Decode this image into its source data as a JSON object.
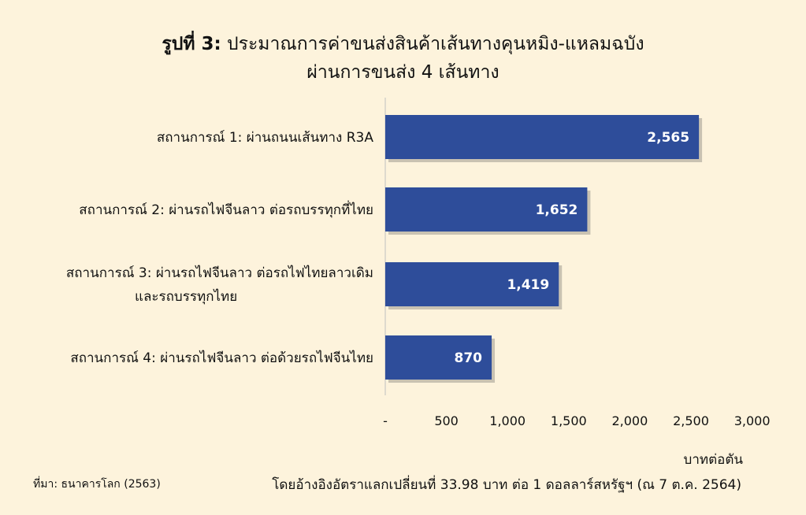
{
  "title": {
    "prefix": "รูปที่ 3:",
    "line1": "ประมาณการค่าขนส่งสินค้าเส้นทางคุนหมิง-แหลมฉบัง",
    "line2": "ผ่านการขนส่ง 4 เส้นทาง"
  },
  "chart_data": {
    "type": "bar",
    "orientation": "horizontal",
    "categories": [
      [
        "สถานการณ์ 1: ผ่านถนนเส้นทาง R3A"
      ],
      [
        "สถานการณ์ 2: ผ่านรถไฟจีนลาว ต่อรถบรรทุกที่ไทย"
      ],
      [
        "สถานการณ์ 3: ผ่านรถไฟจีนลาว ต่อรถไฟไทยลาวเดิม",
        "และรถบรรทุกไทย"
      ],
      [
        "สถานการณ์ 4: ผ่านรถไฟจีนลาว ต่อด้วยรถไฟจีนไทย"
      ]
    ],
    "values": [
      2565,
      1652,
      1419,
      870
    ],
    "value_labels": [
      "2,565",
      "1,652",
      "1,419",
      "870"
    ],
    "xlim": [
      0,
      3000
    ],
    "xticks": [
      0,
      500,
      1000,
      1500,
      2000,
      2500,
      3000
    ],
    "xtick_labels": [
      "-",
      "500",
      "1,000",
      "1,500",
      "2,000",
      "2,500",
      "3,000"
    ],
    "xlabel": "บาทต่อตัน",
    "bar_color": "#2e4d9a",
    "grid": false
  },
  "footer": {
    "source": "ที่มา: ธนาคารโลก (2563)",
    "note": "โดยอ้างอิงอัตราแลกเปลี่ยนที่ 33.98 บาท ต่อ 1 ดอลลาร์สหรัฐฯ (ณ 7 ต.ค. 2564)"
  },
  "colors": {
    "background": "#fdf3dc",
    "bar": "#2e4d9a"
  }
}
